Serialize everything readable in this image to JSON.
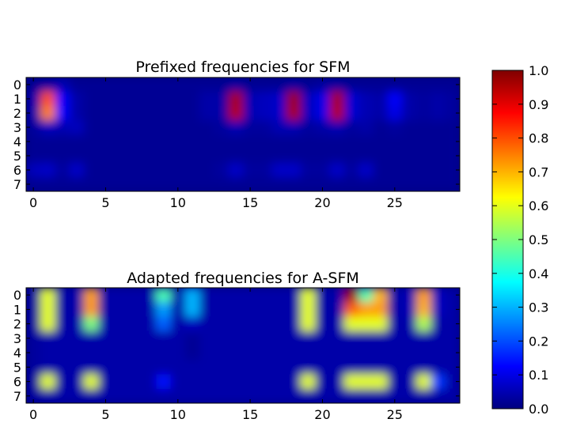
{
  "chart_data": [
    {
      "type": "heatmap",
      "title": "Prefixed frequencies for SFM",
      "x_ticks": [
        "0",
        "5",
        "10",
        "15",
        "20",
        "25"
      ],
      "y_ticks": [
        "0",
        "1",
        "2",
        "3",
        "4",
        "5",
        "6",
        "7"
      ],
      "xlim": [
        0,
        29
      ],
      "ylim": [
        0,
        7
      ],
      "colormap": "jet",
      "grid": false,
      "values": [
        [
          0.02,
          0.03,
          0.05,
          0.02,
          0.02,
          0.02,
          0.02,
          0.02,
          0.02,
          0.02,
          0.02,
          0.02,
          0.02,
          0.02,
          0.03,
          0.02,
          0.02,
          0.02,
          0.03,
          0.02,
          0.03,
          0.03,
          0.02,
          0.02,
          0.02,
          0.02,
          0.02,
          0.02,
          0.02,
          0.02
        ],
        [
          0.04,
          0.8,
          0.12,
          0.04,
          0.02,
          0.02,
          0.02,
          0.02,
          0.02,
          0.02,
          0.02,
          0.02,
          0.04,
          0.04,
          0.96,
          0.05,
          0.06,
          0.07,
          0.97,
          0.06,
          0.1,
          0.96,
          0.08,
          0.05,
          0.04,
          0.12,
          0.04,
          0.03,
          0.04,
          0.03
        ],
        [
          0.04,
          0.75,
          0.12,
          0.04,
          0.02,
          0.02,
          0.02,
          0.02,
          0.02,
          0.02,
          0.02,
          0.02,
          0.04,
          0.04,
          0.95,
          0.05,
          0.06,
          0.07,
          0.96,
          0.06,
          0.1,
          0.95,
          0.08,
          0.05,
          0.04,
          0.1,
          0.04,
          0.03,
          0.04,
          0.03
        ],
        [
          0.03,
          0.06,
          0.05,
          0.06,
          0.02,
          0.02,
          0.02,
          0.02,
          0.02,
          0.02,
          0.02,
          0.02,
          0.02,
          0.03,
          0.05,
          0.03,
          0.03,
          0.05,
          0.05,
          0.03,
          0.04,
          0.05,
          0.03,
          0.04,
          0.02,
          0.03,
          0.02,
          0.02,
          0.02,
          0.02
        ],
        [
          0.02,
          0.02,
          0.02,
          0.02,
          0.02,
          0.02,
          0.02,
          0.02,
          0.02,
          0.02,
          0.02,
          0.02,
          0.02,
          0.02,
          0.02,
          0.02,
          0.02,
          0.02,
          0.02,
          0.02,
          0.02,
          0.02,
          0.02,
          0.02,
          0.02,
          0.02,
          0.02,
          0.02,
          0.02,
          0.02
        ],
        [
          0.02,
          0.02,
          0.02,
          0.02,
          0.02,
          0.02,
          0.02,
          0.02,
          0.02,
          0.02,
          0.02,
          0.02,
          0.02,
          0.02,
          0.02,
          0.02,
          0.02,
          0.02,
          0.02,
          0.02,
          0.02,
          0.02,
          0.02,
          0.02,
          0.02,
          0.02,
          0.02,
          0.02,
          0.02,
          0.02
        ],
        [
          0.06,
          0.07,
          0.03,
          0.07,
          0.02,
          0.02,
          0.02,
          0.02,
          0.02,
          0.02,
          0.02,
          0.02,
          0.02,
          0.03,
          0.07,
          0.03,
          0.03,
          0.07,
          0.07,
          0.03,
          0.03,
          0.07,
          0.03,
          0.07,
          0.02,
          0.02,
          0.02,
          0.02,
          0.02,
          0.02
        ],
        [
          0.02,
          0.02,
          0.02,
          0.02,
          0.02,
          0.02,
          0.02,
          0.02,
          0.02,
          0.02,
          0.02,
          0.02,
          0.02,
          0.02,
          0.02,
          0.02,
          0.02,
          0.02,
          0.02,
          0.02,
          0.02,
          0.02,
          0.02,
          0.02,
          0.02,
          0.02,
          0.02,
          0.02,
          0.02,
          0.02
        ]
      ]
    },
    {
      "type": "heatmap",
      "title": "Adapted frequencies for A-SFM",
      "x_ticks": [
        "0",
        "5",
        "10",
        "15",
        "20",
        "25"
      ],
      "y_ticks": [
        "0",
        "1",
        "2",
        "3",
        "4",
        "5",
        "6",
        "7"
      ],
      "xlim": [
        0,
        29
      ],
      "ylim": [
        0,
        7
      ],
      "colormap": "jet",
      "grid": false,
      "values": [
        [
          0.03,
          0.6,
          0.04,
          0.04,
          0.72,
          0.04,
          0.04,
          0.04,
          0.04,
          0.45,
          0.04,
          0.3,
          0.04,
          0.04,
          0.04,
          0.04,
          0.04,
          0.04,
          0.04,
          0.6,
          0.04,
          0.04,
          0.97,
          0.45,
          0.7,
          0.04,
          0.05,
          0.72,
          0.06,
          0.04
        ],
        [
          0.03,
          0.6,
          0.04,
          0.04,
          0.72,
          0.04,
          0.04,
          0.04,
          0.04,
          0.28,
          0.04,
          0.3,
          0.04,
          0.04,
          0.04,
          0.04,
          0.04,
          0.04,
          0.04,
          0.6,
          0.04,
          0.04,
          0.78,
          0.72,
          0.72,
          0.04,
          0.05,
          0.7,
          0.06,
          0.04
        ],
        [
          0.03,
          0.6,
          0.04,
          0.04,
          0.5,
          0.04,
          0.04,
          0.04,
          0.04,
          0.22,
          0.04,
          0.06,
          0.04,
          0.04,
          0.04,
          0.04,
          0.04,
          0.04,
          0.04,
          0.6,
          0.04,
          0.04,
          0.6,
          0.6,
          0.6,
          0.04,
          0.04,
          0.55,
          0.04,
          0.04
        ],
        [
          0.03,
          0.04,
          0.04,
          0.04,
          0.04,
          0.04,
          0.04,
          0.04,
          0.04,
          0.04,
          0.04,
          0.02,
          0.04,
          0.04,
          0.04,
          0.04,
          0.04,
          0.04,
          0.04,
          0.04,
          0.04,
          0.04,
          0.04,
          0.04,
          0.04,
          0.04,
          0.04,
          0.04,
          0.04,
          0.04
        ],
        [
          0.03,
          0.04,
          0.04,
          0.04,
          0.04,
          0.04,
          0.04,
          0.04,
          0.04,
          0.04,
          0.04,
          0.02,
          0.04,
          0.04,
          0.04,
          0.04,
          0.04,
          0.04,
          0.04,
          0.04,
          0.04,
          0.04,
          0.04,
          0.04,
          0.04,
          0.04,
          0.04,
          0.04,
          0.04,
          0.04
        ],
        [
          0.03,
          0.04,
          0.04,
          0.04,
          0.04,
          0.04,
          0.04,
          0.04,
          0.04,
          0.04,
          0.04,
          0.04,
          0.04,
          0.04,
          0.04,
          0.04,
          0.04,
          0.04,
          0.04,
          0.04,
          0.04,
          0.04,
          0.04,
          0.04,
          0.04,
          0.04,
          0.04,
          0.04,
          0.04,
          0.04
        ],
        [
          0.03,
          0.6,
          0.04,
          0.04,
          0.6,
          0.04,
          0.04,
          0.04,
          0.04,
          0.14,
          0.04,
          0.04,
          0.04,
          0.04,
          0.04,
          0.04,
          0.04,
          0.04,
          0.04,
          0.6,
          0.04,
          0.04,
          0.6,
          0.6,
          0.6,
          0.04,
          0.04,
          0.6,
          0.18,
          0.04
        ],
        [
          0.03,
          0.04,
          0.04,
          0.04,
          0.04,
          0.04,
          0.04,
          0.04,
          0.04,
          0.04,
          0.04,
          0.04,
          0.04,
          0.04,
          0.04,
          0.04,
          0.04,
          0.04,
          0.04,
          0.04,
          0.04,
          0.04,
          0.04,
          0.04,
          0.04,
          0.04,
          0.04,
          0.04,
          0.04,
          0.04
        ]
      ]
    }
  ],
  "colorbar": {
    "colormap": "jet",
    "range": [
      0.0,
      1.0
    ],
    "ticks": [
      "0.0",
      "0.1",
      "0.2",
      "0.3",
      "0.4",
      "0.5",
      "0.6",
      "0.7",
      "0.8",
      "0.9",
      "1.0"
    ]
  }
}
